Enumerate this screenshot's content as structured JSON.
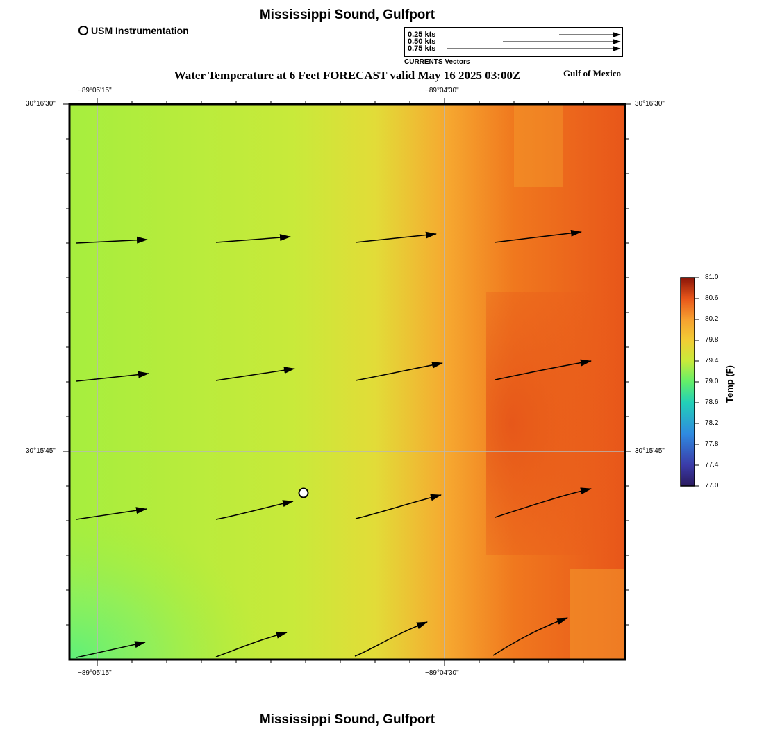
{
  "header": {
    "location_title": "Mississippi Sound, Gulfport",
    "subtitle": "Water Temperature at 6 Feet FORECAST valid May 16 2025 03:00Z",
    "region_label": "Gulf of Mexico",
    "footer_title": "Mississippi Sound, Gulfport"
  },
  "station_legend": {
    "label": "USM Instrumentation"
  },
  "vector_legend": {
    "items": [
      "0.25 kts",
      "0.50 kts",
      "0.75 kts"
    ],
    "caption": "CURRENTS Vectors"
  },
  "map": {
    "lon_labels": [
      "−89°05'15\"",
      "−89°04'30\""
    ],
    "lat_labels": [
      "30°16'30\"",
      "30°15'45\""
    ]
  },
  "colorbar": {
    "title": "Temp (F)",
    "ticks": [
      "81.0",
      "80.6",
      "80.2",
      "79.8",
      "79.4",
      "79.0",
      "78.6",
      "78.2",
      "77.8",
      "77.4",
      "77.0"
    ]
  },
  "colors": {
    "cool": "#5ef07a",
    "mild": "#c8ea3a",
    "warm": "#f6a830",
    "hot": "#e8561a"
  }
}
